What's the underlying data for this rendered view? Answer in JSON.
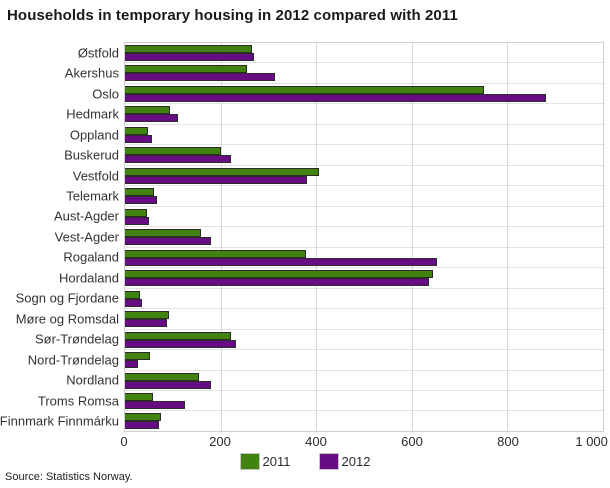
{
  "source": "Source: Statistics Norway.",
  "colors": {
    "series_2011": "#40830f",
    "series_2012": "#660d83",
    "bar_border": "#2b2b2b",
    "gridline": "#d9d9d9",
    "plot_border": "#cfcfcf"
  },
  "chart_data": {
    "type": "bar",
    "orientation": "horizontal",
    "title": "Households in temporary housing in 2012 compared with 2011",
    "xlabel": "",
    "ylabel": "",
    "xlim": [
      0,
      1000
    ],
    "x_ticks": [
      0,
      200,
      400,
      600,
      800,
      1000
    ],
    "x_tick_labels": [
      "0",
      "200",
      "400",
      "600",
      "800",
      "1 000"
    ],
    "grid": true,
    "legend_position": "bottom",
    "categories": [
      "Østfold",
      "Akershus",
      "Oslo",
      "Hedmark",
      "Oppland",
      "Buskerud",
      "Vestfold",
      "Telemark",
      "Aust-Agder",
      "Vest-Agder",
      "Rogaland",
      "Hordaland",
      "Sogn og Fjordane",
      "Møre og Romsdal",
      "Sør-Trøndelag",
      "Nord-Trøndelag",
      "Nordland",
      "Troms Romsa",
      "Finnmark Finnmárku"
    ],
    "series": [
      {
        "name": "2011",
        "color": "#40830f",
        "values": [
          265,
          255,
          750,
          95,
          48,
          200,
          405,
          61,
          47,
          158,
          378,
          644,
          32,
          92,
          221,
          52,
          154,
          58,
          76
        ]
      },
      {
        "name": "2012",
        "color": "#660d83",
        "values": [
          270,
          313,
          880,
          110,
          57,
          222,
          380,
          66,
          50,
          180,
          653,
          636,
          35,
          88,
          233,
          28,
          180,
          126,
          72
        ]
      }
    ]
  }
}
